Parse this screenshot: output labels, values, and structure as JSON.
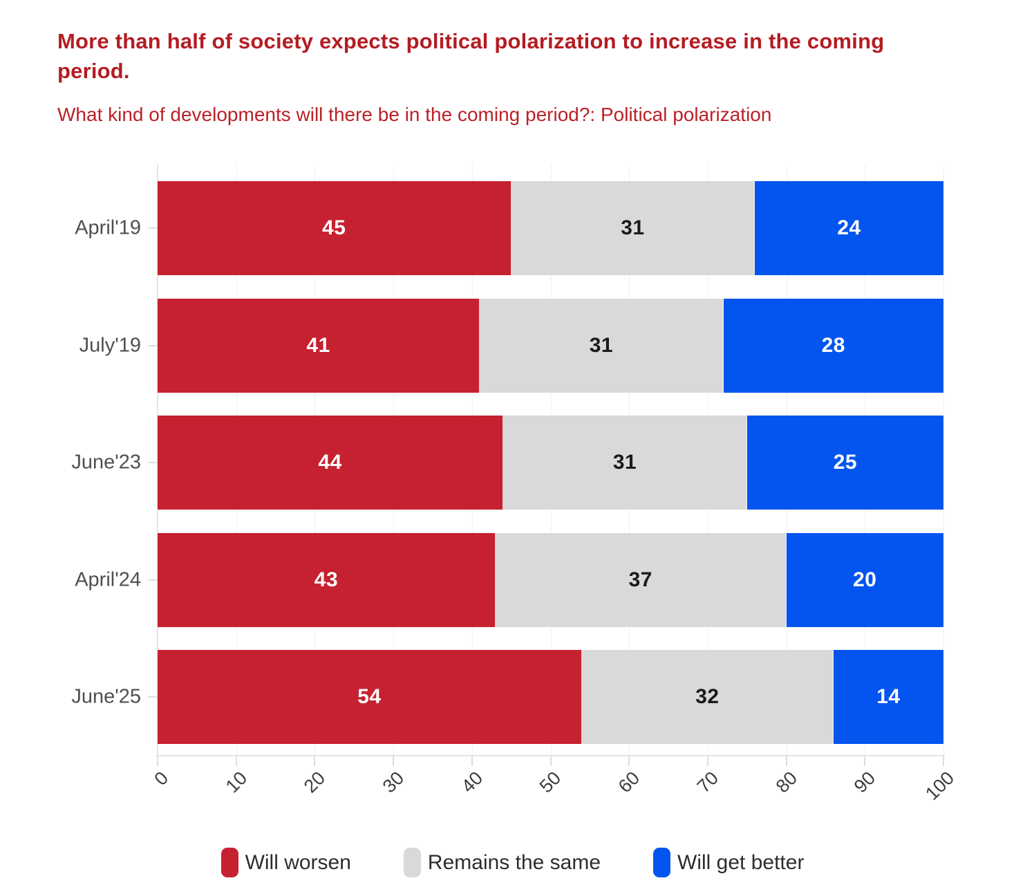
{
  "title": "More than half of society expects political polarization to increase in the coming period.",
  "subtitle": "What kind of developments will there be in the coming period?: Political polarization",
  "colors": {
    "title_text": "#b41c22",
    "subtitle_text": "#bb2127",
    "axis_line": "#e4e4e4",
    "tick_mark": "#dedede",
    "gridline": "#f1f1f1",
    "category_label_text": "#4f4f4f",
    "tick_label_text": "#3d3d3d",
    "legend_label_text": "#2d2d2d"
  },
  "chart_data": {
    "type": "bar",
    "stacked": true,
    "orientation": "horizontal",
    "title": "More than half of society expects political polarization to increase in the coming period.",
    "subtitle": "What kind of developments will there be in the coming period?: Political polarization",
    "categories": [
      "April'19",
      "July'19",
      "June'23",
      "April'24",
      "June'25"
    ],
    "series": [
      {
        "name": "Will worsen",
        "color": "#c62130",
        "label_color": "#ffffff",
        "values": [
          45,
          41,
          44,
          43,
          54
        ]
      },
      {
        "name": "Remains the same",
        "color": "#d9d9d9",
        "label_color": "#1a1a1a",
        "values": [
          31,
          31,
          31,
          37,
          32
        ]
      },
      {
        "name": "Will get better",
        "color": "#0455ef",
        "label_color": "#ffffff",
        "values": [
          24,
          28,
          25,
          20,
          14
        ]
      }
    ],
    "xlabel": "",
    "ylabel": "",
    "xlim": [
      0,
      100
    ],
    "xticks": [
      0,
      10,
      20,
      30,
      40,
      50,
      60,
      70,
      80,
      90,
      100
    ],
    "grid": "faint-vertical",
    "legend_position": "bottom"
  }
}
